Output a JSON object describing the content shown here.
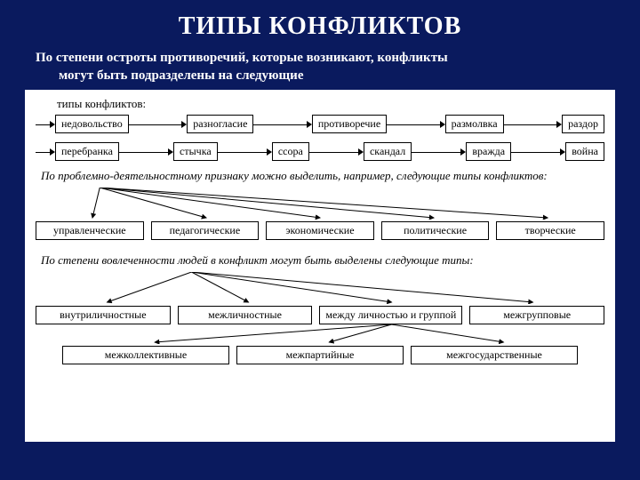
{
  "title": "ТИПЫ КОНФЛИКТОВ",
  "subtitle_line1": "По степени остроты противоречий, которые возникают, конфликты",
  "subtitle_line2": "могут быть подразделены на следующие",
  "diagram": {
    "caption1": "типы конфликтов:",
    "chain1": [
      "недовольство",
      "разногласие",
      "противоречие",
      "размолвка",
      "раздор"
    ],
    "chain2": [
      "перебранка",
      "стычка",
      "ссора",
      "скандал",
      "вражда",
      "война"
    ],
    "caption2_italic": "По проблемно-деятельностному признаку",
    "caption2_rest": " можно выделить, например, следующие типы конфликтов:",
    "fan1_nodes": [
      "управленческие",
      "педагогические",
      "экономические",
      "политические",
      "творческие"
    ],
    "caption3_italic": "По степени вовлеченности людей в конфликт",
    "caption3_rest": " могут быть выделены следующие типы:",
    "fan2_row1": [
      "внутриличностные",
      "межличностные",
      "между личностью и группой",
      "межгрупповые"
    ],
    "fan2_row2": [
      "межколлективные",
      "межпартийные",
      "межгосударственные"
    ]
  },
  "style": {
    "bg_color": "#0a1a5e",
    "panel_bg": "#ffffff",
    "title_color": "#ffffff",
    "title_fontsize": 28,
    "subtitle_fontsize": 15,
    "node_fontsize": 12,
    "node_border": "#000000",
    "arrow_color": "#000000"
  }
}
